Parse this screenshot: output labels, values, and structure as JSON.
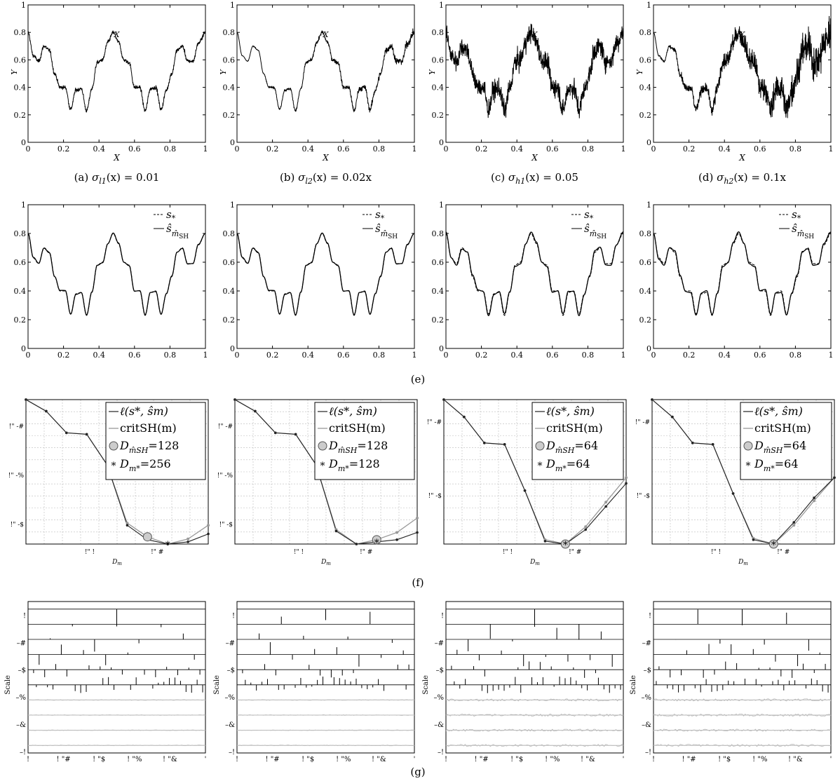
{
  "captions": {
    "row1": [
      {
        "letter": "(a)",
        "sigma": "σ",
        "sub": "l1",
        "rest": "(x) = 0.01"
      },
      {
        "letter": "(b)",
        "sigma": "σ",
        "sub": "l2",
        "rest": "(x) = 0.02x"
      },
      {
        "letter": "(c)",
        "sigma": "σ",
        "sub": "h1",
        "rest": "(x) = 0.05"
      },
      {
        "letter": "(d)",
        "sigma": "σ",
        "sub": "h2",
        "rest": "(x) = 0.1x"
      }
    ],
    "e": "(e)",
    "f": "(f)",
    "g": "(g)"
  },
  "chart_data": [
    {
      "panel": "row1",
      "type": "line",
      "description_of_series": "noisy observations of s_* for each noise level",
      "xlabel": "X",
      "ylabel": "Y",
      "xlim": [
        0,
        1
      ],
      "ylim": [
        0,
        1
      ],
      "xticks": [
        "0",
        "0.2",
        "0.4",
        "0.6",
        "0.8",
        "1"
      ],
      "yticks": [
        "0",
        "0.2",
        "0.4",
        "0.6",
        "0.8",
        "1"
      ],
      "noise_sd": [
        "0.01",
        "0.02x",
        "0.05",
        "0.1x"
      ]
    },
    {
      "panel": "e",
      "type": "line",
      "xlim": [
        0,
        1
      ],
      "ylim": [
        0,
        1
      ],
      "xticks": [
        "0",
        "0.2",
        "0.4",
        "0.6",
        "0.8",
        "1"
      ],
      "yticks": [
        "0",
        "0.2",
        "0.4",
        "0.6",
        "0.8",
        "1"
      ],
      "legend": {
        "position": "top-right",
        "entries": [
          {
            "style": "dashed",
            "label": "s",
            "sub": "*"
          },
          {
            "style": "solid",
            "label": "ŝ",
            "sub": "m̂",
            "subsub": "SH"
          }
        ]
      },
      "true_function_samples": {
        "x": [
          0,
          0.03,
          0.06,
          0.09,
          0.12,
          0.15,
          0.18,
          0.21,
          0.24,
          0.27,
          0.3,
          0.33,
          0.36,
          0.39,
          0.42,
          0.45,
          0.48,
          0.51,
          0.54,
          0.57,
          0.6,
          0.63,
          0.66,
          0.69,
          0.72,
          0.75,
          0.78,
          0.81,
          0.84,
          0.87,
          0.9,
          0.93,
          0.96,
          1.0
        ],
        "y": [
          0.8,
          0.63,
          0.59,
          0.7,
          0.67,
          0.5,
          0.4,
          0.4,
          0.24,
          0.38,
          0.39,
          0.23,
          0.39,
          0.58,
          0.6,
          0.73,
          0.8,
          0.73,
          0.6,
          0.58,
          0.4,
          0.4,
          0.23,
          0.39,
          0.4,
          0.24,
          0.38,
          0.5,
          0.67,
          0.7,
          0.59,
          0.59,
          0.72,
          0.8
        ]
      }
    },
    {
      "panel": "f",
      "type": "line",
      "xlabel": "D",
      "xlabel_sub": "m",
      "xticks": [
        "!\" !",
        "!\" #"
      ],
      "panels": [
        {
          "yticks": [
            "!\" -#",
            "!\" -%",
            "!\" -$"
          ],
          "legend": [
            {
              "style": "dark-line",
              "label": "ℓ(s*, ŝm)"
            },
            {
              "style": "gray-line",
              "label": "critSH(m)"
            },
            {
              "style": "gray-circle",
              "label": "D",
              "sub": "m̂SH",
              "value": "=128"
            },
            {
              "style": "star",
              "label": "D",
              "sub": "m*",
              "value": "=256"
            }
          ]
        },
        {
          "yticks": [
            "!\" -#",
            "!\" -%",
            "!\" -$"
          ],
          "legend": [
            {
              "style": "dark-line",
              "label": "ℓ(s*, ŝm)"
            },
            {
              "style": "gray-line",
              "label": "critSH(m)"
            },
            {
              "style": "gray-circle",
              "label": "D",
              "sub": "m̂SH",
              "value": "=128"
            },
            {
              "style": "star",
              "label": "D",
              "sub": "m*",
              "value": "=128"
            }
          ]
        },
        {
          "yticks": [
            "!\" -#",
            "!\" -$"
          ],
          "legend": [
            {
              "style": "dark-line",
              "label": "ℓ(s*, ŝm)"
            },
            {
              "style": "gray-line",
              "label": "critSH(m)"
            },
            {
              "style": "gray-circle",
              "label": "D",
              "sub": "m̂SH",
              "value": "=64"
            },
            {
              "style": "star",
              "label": "D",
              "sub": "m*",
              "value": "=64"
            }
          ]
        },
        {
          "yticks": [
            "!\" -#",
            "!\" -$"
          ],
          "legend": [
            {
              "style": "dark-line",
              "label": "ℓ(s*, ŝm)"
            },
            {
              "style": "gray-line",
              "label": "critSH(m)"
            },
            {
              "style": "gray-circle",
              "label": "D",
              "sub": "m̂SH",
              "value": "=64"
            },
            {
              "style": "star",
              "label": "D",
              "sub": "m*",
              "value": "=64"
            }
          ]
        }
      ]
    },
    {
      "panel": "g",
      "type": "scatter",
      "ylabel": "Scale",
      "yticks": [
        "!",
        "–#",
        "–$",
        "–%",
        "–&",
        "–!"
      ],
      "xticks": [
        "!",
        "! \"#",
        "! \"$",
        "! \"%",
        "! \"&",
        "'"
      ]
    }
  ]
}
